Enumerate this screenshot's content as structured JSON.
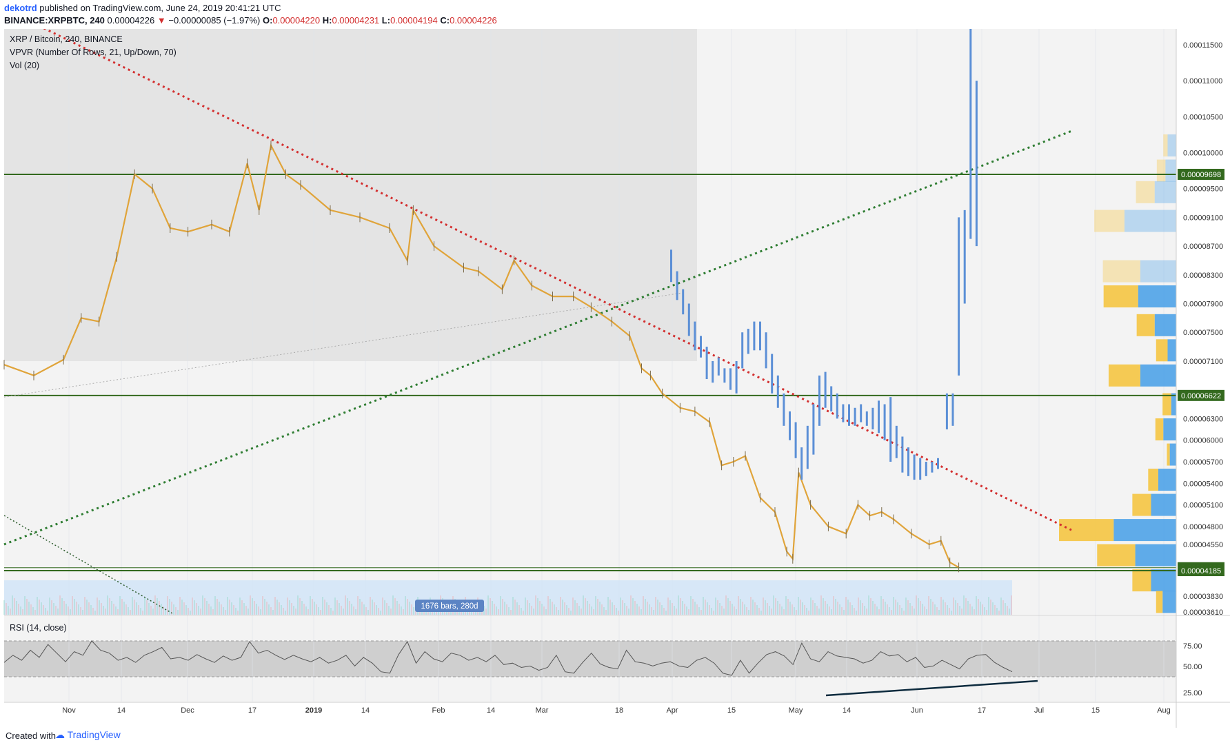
{
  "header": {
    "author": "dekotrd",
    "published": "published on TradingView.com, June 24, 2019 20:41:21 UTC",
    "symbol": "BINANCE:XRPBTC, 240",
    "last": "0.00004226",
    "change_arrow": "▼",
    "change": "−0.00000085 (−1.97%)",
    "o_label": "O:",
    "o_value": "0.00004220",
    "h_label": "H:",
    "h_value": "0.00004231",
    "l_label": "L:",
    "l_value": "0.00004194",
    "c_label": "C:",
    "c_value": "0.00004226"
  },
  "legend": {
    "title": "XRP / Bitcoin, 240, BINANCE",
    "vpvr": "VPVR (Number Of Rows, 21, Up/Down, 70)",
    "vol": "Vol (20)",
    "rsi": "RSI (14, close)"
  },
  "bars_badge": "1676 bars, 280d",
  "footer": {
    "created": "Created with",
    "brand": "TradingView"
  },
  "colors": {
    "candle": "#e0a43a",
    "projection": "#5b8fd6",
    "red_trend": "#d32f2f",
    "green_trend": "#2e7d32",
    "horizontal": "#33691e",
    "vpvr_up": "#4fa3e8",
    "vpvr_down": "#f5c542",
    "price_label_bg": "#33691e"
  },
  "chart_data": {
    "type": "line",
    "price_axis_ticks": [
      "0.00011500",
      "0.00011000",
      "0.00010500",
      "0.00010000",
      "0.00009500",
      "0.00009100",
      "0.00008700",
      "0.00008300",
      "0.00007900",
      "0.00007500",
      "0.00007100",
      "0.00006300",
      "0.00006000",
      "0.00005700",
      "0.00005400",
      "0.00005100",
      "0.00004800",
      "0.00004550",
      "0.00003830",
      "0.00003610"
    ],
    "price_labels": [
      {
        "value": "0.00009698",
        "kind": "level"
      },
      {
        "value": "0.00006622",
        "kind": "level"
      },
      {
        "value": "0.00004226",
        "kind": "last"
      },
      {
        "value": "0.00004185",
        "kind": "level"
      }
    ],
    "time_axis": [
      "Nov",
      "14",
      "Dec",
      "17",
      "2019",
      "14",
      "Feb",
      "14",
      "Mar",
      "18",
      "Apr",
      "15",
      "May",
      "14",
      "Jun",
      "17",
      "Jul",
      "15",
      "Aug"
    ],
    "rsi_axis": [
      "75.00",
      "50.00",
      "25.00"
    ],
    "price_series": [
      {
        "d": 0,
        "p": 7.05e-05
      },
      {
        "d": 10,
        "p": 6.9e-05
      },
      {
        "d": 20,
        "p": 7.12e-05
      },
      {
        "d": 26,
        "p": 7.7e-05
      },
      {
        "d": 32,
        "p": 7.65e-05
      },
      {
        "d": 38,
        "p": 8.55e-05
      },
      {
        "d": 44,
        "p": 9.7e-05
      },
      {
        "d": 50,
        "p": 9.5e-05
      },
      {
        "d": 56,
        "p": 8.95e-05
      },
      {
        "d": 62,
        "p": 8.9e-05
      },
      {
        "d": 70,
        "p": 9e-05
      },
      {
        "d": 76,
        "p": 8.9e-05
      },
      {
        "d": 82,
        "p": 9.85e-05
      },
      {
        "d": 86,
        "p": 9.2e-05
      },
      {
        "d": 90,
        "p": 0.000101
      },
      {
        "d": 95,
        "p": 9.7e-05
      },
      {
        "d": 100,
        "p": 9.55e-05
      },
      {
        "d": 110,
        "p": 9.2e-05
      },
      {
        "d": 120,
        "p": 9.1e-05
      },
      {
        "d": 130,
        "p": 8.95e-05
      },
      {
        "d": 136,
        "p": 8.5e-05
      },
      {
        "d": 138,
        "p": 9.2e-05
      },
      {
        "d": 145,
        "p": 8.7e-05
      },
      {
        "d": 155,
        "p": 8.4e-05
      },
      {
        "d": 160,
        "p": 8.35e-05
      },
      {
        "d": 168,
        "p": 8.1e-05
      },
      {
        "d": 172,
        "p": 8.5e-05
      },
      {
        "d": 178,
        "p": 8.15e-05
      },
      {
        "d": 185,
        "p": 8e-05
      },
      {
        "d": 192,
        "p": 8e-05
      },
      {
        "d": 198,
        "p": 7.85e-05
      },
      {
        "d": 205,
        "p": 7.65e-05
      },
      {
        "d": 211,
        "p": 7.45e-05
      },
      {
        "d": 215,
        "p": 7e-05
      },
      {
        "d": 218,
        "p": 6.9e-05
      },
      {
        "d": 222,
        "p": 6.65e-05
      },
      {
        "d": 228,
        "p": 6.45e-05
      },
      {
        "d": 233,
        "p": 6.4e-05
      },
      {
        "d": 238,
        "p": 6.25e-05
      },
      {
        "d": 242,
        "p": 5.65e-05
      },
      {
        "d": 246,
        "p": 5.7e-05
      },
      {
        "d": 250,
        "p": 5.78e-05
      },
      {
        "d": 255,
        "p": 5.2e-05
      },
      {
        "d": 260,
        "p": 5e-05
      },
      {
        "d": 264,
        "p": 4.45e-05
      },
      {
        "d": 266,
        "p": 4.35e-05
      },
      {
        "d": 268,
        "p": 5.55e-05
      },
      {
        "d": 272,
        "p": 5.1e-05
      },
      {
        "d": 278,
        "p": 4.8e-05
      },
      {
        "d": 284,
        "p": 4.7e-05
      },
      {
        "d": 288,
        "p": 5.1e-05
      },
      {
        "d": 292,
        "p": 4.95e-05
      },
      {
        "d": 296,
        "p": 5e-05
      },
      {
        "d": 300,
        "p": 4.9e-05
      },
      {
        "d": 306,
        "p": 4.7e-05
      },
      {
        "d": 312,
        "p": 4.55e-05
      },
      {
        "d": 316,
        "p": 4.6e-05
      },
      {
        "d": 319,
        "p": 4.3e-05
      },
      {
        "d": 322,
        "p": 4.23e-05
      }
    ],
    "projection_bars": [
      {
        "d": 225,
        "lo": 8.2e-05,
        "hi": 8.65e-05
      },
      {
        "d": 227,
        "lo": 7.95e-05,
        "hi": 8.35e-05
      },
      {
        "d": 229,
        "lo": 7.75e-05,
        "hi": 8.1e-05
      },
      {
        "d": 231,
        "lo": 7.45e-05,
        "hi": 7.9e-05
      },
      {
        "d": 233,
        "lo": 7.25e-05,
        "hi": 7.65e-05
      },
      {
        "d": 235,
        "lo": 7.15e-05,
        "hi": 7.45e-05
      },
      {
        "d": 237,
        "lo": 6.85e-05,
        "hi": 7.3e-05
      },
      {
        "d": 239,
        "lo": 6.8e-05,
        "hi": 7.1e-05
      },
      {
        "d": 241,
        "lo": 6.9e-05,
        "hi": 7.15e-05
      },
      {
        "d": 243,
        "lo": 6.8e-05,
        "hi": 7e-05
      },
      {
        "d": 245,
        "lo": 6.7e-05,
        "hi": 7e-05
      },
      {
        "d": 247,
        "lo": 6.65e-05,
        "hi": 7.1e-05
      },
      {
        "d": 249,
        "lo": 7e-05,
        "hi": 7.5e-05
      },
      {
        "d": 251,
        "lo": 7.2e-05,
        "hi": 7.55e-05
      },
      {
        "d": 253,
        "lo": 7.25e-05,
        "hi": 7.65e-05
      },
      {
        "d": 255,
        "lo": 7.25e-05,
        "hi": 7.65e-05
      },
      {
        "d": 257,
        "lo": 7e-05,
        "hi": 7.5e-05
      },
      {
        "d": 259,
        "lo": 6.65e-05,
        "hi": 7.2e-05
      },
      {
        "d": 261,
        "lo": 6.45e-05,
        "hi": 6.9e-05
      },
      {
        "d": 263,
        "lo": 6.2e-05,
        "hi": 6.65e-05
      },
      {
        "d": 265,
        "lo": 6e-05,
        "hi": 6.4e-05
      },
      {
        "d": 267,
        "lo": 5.75e-05,
        "hi": 6.25e-05
      },
      {
        "d": 269,
        "lo": 5.45e-05,
        "hi": 5.9e-05
      },
      {
        "d": 271,
        "lo": 5.6e-05,
        "hi": 6.2e-05
      },
      {
        "d": 273,
        "lo": 5.8e-05,
        "hi": 6.5e-05
      },
      {
        "d": 275,
        "lo": 6.2e-05,
        "hi": 6.9e-05
      },
      {
        "d": 277,
        "lo": 6.45e-05,
        "hi": 6.95e-05
      },
      {
        "d": 279,
        "lo": 6.4e-05,
        "hi": 6.75e-05
      },
      {
        "d": 281,
        "lo": 6.3e-05,
        "hi": 6.65e-05
      },
      {
        "d": 283,
        "lo": 6.25e-05,
        "hi": 6.5e-05
      },
      {
        "d": 285,
        "lo": 6.2e-05,
        "hi": 6.5e-05
      },
      {
        "d": 287,
        "lo": 6.2e-05,
        "hi": 6.45e-05
      },
      {
        "d": 289,
        "lo": 6.25e-05,
        "hi": 6.5e-05
      },
      {
        "d": 291,
        "lo": 6.2e-05,
        "hi": 6.4e-05
      },
      {
        "d": 293,
        "lo": 6.15e-05,
        "hi": 6.45e-05
      },
      {
        "d": 295,
        "lo": 6.1e-05,
        "hi": 6.55e-05
      },
      {
        "d": 297,
        "lo": 6e-05,
        "hi": 6.5e-05
      },
      {
        "d": 299,
        "lo": 5.7e-05,
        "hi": 6.6e-05
      },
      {
        "d": 301,
        "lo": 5.75e-05,
        "hi": 6.2e-05
      },
      {
        "d": 303,
        "lo": 5.55e-05,
        "hi": 6.05e-05
      },
      {
        "d": 305,
        "lo": 5.5e-05,
        "hi": 5.9e-05
      },
      {
        "d": 307,
        "lo": 5.45e-05,
        "hi": 5.8e-05
      },
      {
        "d": 309,
        "lo": 5.45e-05,
        "hi": 5.75e-05
      },
      {
        "d": 311,
        "lo": 5.5e-05,
        "hi": 5.7e-05
      },
      {
        "d": 313,
        "lo": 5.55e-05,
        "hi": 5.7e-05
      },
      {
        "d": 315,
        "lo": 5.6e-05,
        "hi": 5.75e-05
      },
      {
        "d": 318,
        "lo": 6.15e-05,
        "hi": 6.65e-05
      },
      {
        "d": 320,
        "lo": 6.2e-05,
        "hi": 6.65e-05
      },
      {
        "d": 322,
        "lo": 6.9e-05,
        "hi": 9.1e-05
      },
      {
        "d": 324,
        "lo": 7.9e-05,
        "hi": 9.2e-05
      },
      {
        "d": 326,
        "lo": 8.8e-05,
        "hi": 0.000118
      },
      {
        "d": 328,
        "lo": 8.7e-05,
        "hi": 0.00011
      }
    ],
    "vpvr": [
      {
        "price": 0.000101,
        "up": 0.6,
        "down": 1.2
      },
      {
        "price": 9.75e-05,
        "up": 1.2,
        "down": 1.5
      },
      {
        "price": 9.45e-05,
        "up": 2.6,
        "down": 3.0
      },
      {
        "price": 9.05e-05,
        "up": 4.2,
        "down": 7.2
      },
      {
        "price": 8.35e-05,
        "up": 5.2,
        "down": 5.0
      },
      {
        "price": 8e-05,
        "up": 4.8,
        "down": 5.3
      },
      {
        "price": 7.6e-05,
        "up": 2.5,
        "down": 3.0
      },
      {
        "price": 7.25e-05,
        "up": 1.6,
        "down": 1.2
      },
      {
        "price": 6.9e-05,
        "up": 4.4,
        "down": 5.0
      },
      {
        "price": 6.5e-05,
        "up": 1.2,
        "down": 0.7
      },
      {
        "price": 6.15e-05,
        "up": 1.1,
        "down": 1.8
      },
      {
        "price": 5.8e-05,
        "up": 0.4,
        "down": 0.9
      },
      {
        "price": 5.45e-05,
        "up": 1.4,
        "down": 2.5
      },
      {
        "price": 5.1e-05,
        "up": 2.6,
        "down": 3.5
      },
      {
        "price": 4.75e-05,
        "up": 7.6,
        "down": 8.7
      },
      {
        "price": 4.4e-05,
        "up": 5.3,
        "down": 5.7
      },
      {
        "price": 4.05e-05,
        "up": 2.6,
        "down": 3.5
      },
      {
        "price": 3.75e-05,
        "up": 0.9,
        "down": 1.9
      }
    ],
    "rsi_series": [
      45,
      55,
      48,
      62,
      52,
      70,
      58,
      46,
      60,
      55,
      75,
      62,
      58,
      48,
      52,
      45,
      55,
      60,
      66,
      50,
      52,
      48,
      56,
      50,
      45,
      54,
      48,
      52,
      74,
      58,
      62,
      55,
      49,
      55,
      50,
      46,
      52,
      44,
      48,
      55,
      40,
      52,
      44,
      32,
      30,
      56,
      74,
      44,
      60,
      50,
      46,
      58,
      55,
      48,
      52,
      46,
      55,
      42,
      44,
      38,
      40,
      34,
      38,
      55,
      32,
      30,
      45,
      58,
      43,
      38,
      36,
      62,
      46,
      44,
      40,
      44,
      46,
      40,
      38,
      48,
      52,
      44,
      30,
      27,
      48,
      30,
      44,
      56,
      60,
      54,
      42,
      72,
      50,
      46,
      60,
      54,
      52,
      50,
      44,
      48,
      60,
      54,
      56,
      46,
      52,
      38,
      40,
      48,
      42,
      36,
      50,
      55,
      56,
      45,
      38,
      32
    ],
    "trend_lines": [
      {
        "name": "red",
        "d0": 0,
        "p0": 0.00012,
        "d1": 360,
        "p1": 4.75e-05
      },
      {
        "name": "green",
        "d0": 0,
        "p0": 4.55e-05,
        "d1": 360,
        "p1": 0.000103
      }
    ],
    "horizontal_levels": [
      9.698e-05,
      6.622e-05,
      4.226e-05,
      4.185e-05
    ]
  }
}
